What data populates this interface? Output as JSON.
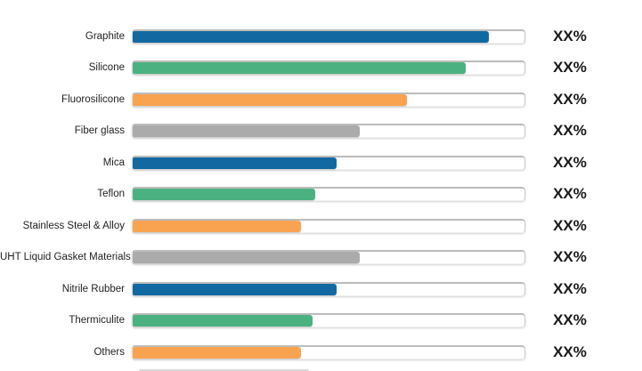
{
  "chart_data": {
    "type": "bar",
    "orientation": "horizontal",
    "title": "",
    "xlabel": "",
    "ylabel": "",
    "categories": [
      "Graphite",
      "Silicone",
      "Fluorosilicone",
      "Fiber glass",
      "Mica",
      "Teflon",
      "Stainless Steel & Alloy",
      "UHT Liquid Gasket Materials",
      "Nitrile Rubber",
      "Thermiculite",
      "Others"
    ],
    "values_pct_of_track": [
      91,
      85,
      70,
      58,
      52,
      46.5,
      43,
      58,
      52,
      46,
      43
    ],
    "value_labels": [
      "XX%",
      "XX%",
      "XX%",
      "XX%",
      "XX%",
      "XX%",
      "XX%",
      "XX%",
      "XX%",
      "XX%",
      "XX%"
    ],
    "track_range_pct": [
      0,
      100
    ],
    "grid": false,
    "legend": false,
    "bar_color_cycle": [
      "#1269A2",
      "#4BB181",
      "#F9A351",
      "#ABABAB"
    ],
    "track_fill": "#ffffff",
    "track_edge_color": "#bcbcbc",
    "label_color": "#1f1f1f",
    "value_label_color": "#1a1a1a",
    "has_cutoff_next_bar_sliver": true
  }
}
